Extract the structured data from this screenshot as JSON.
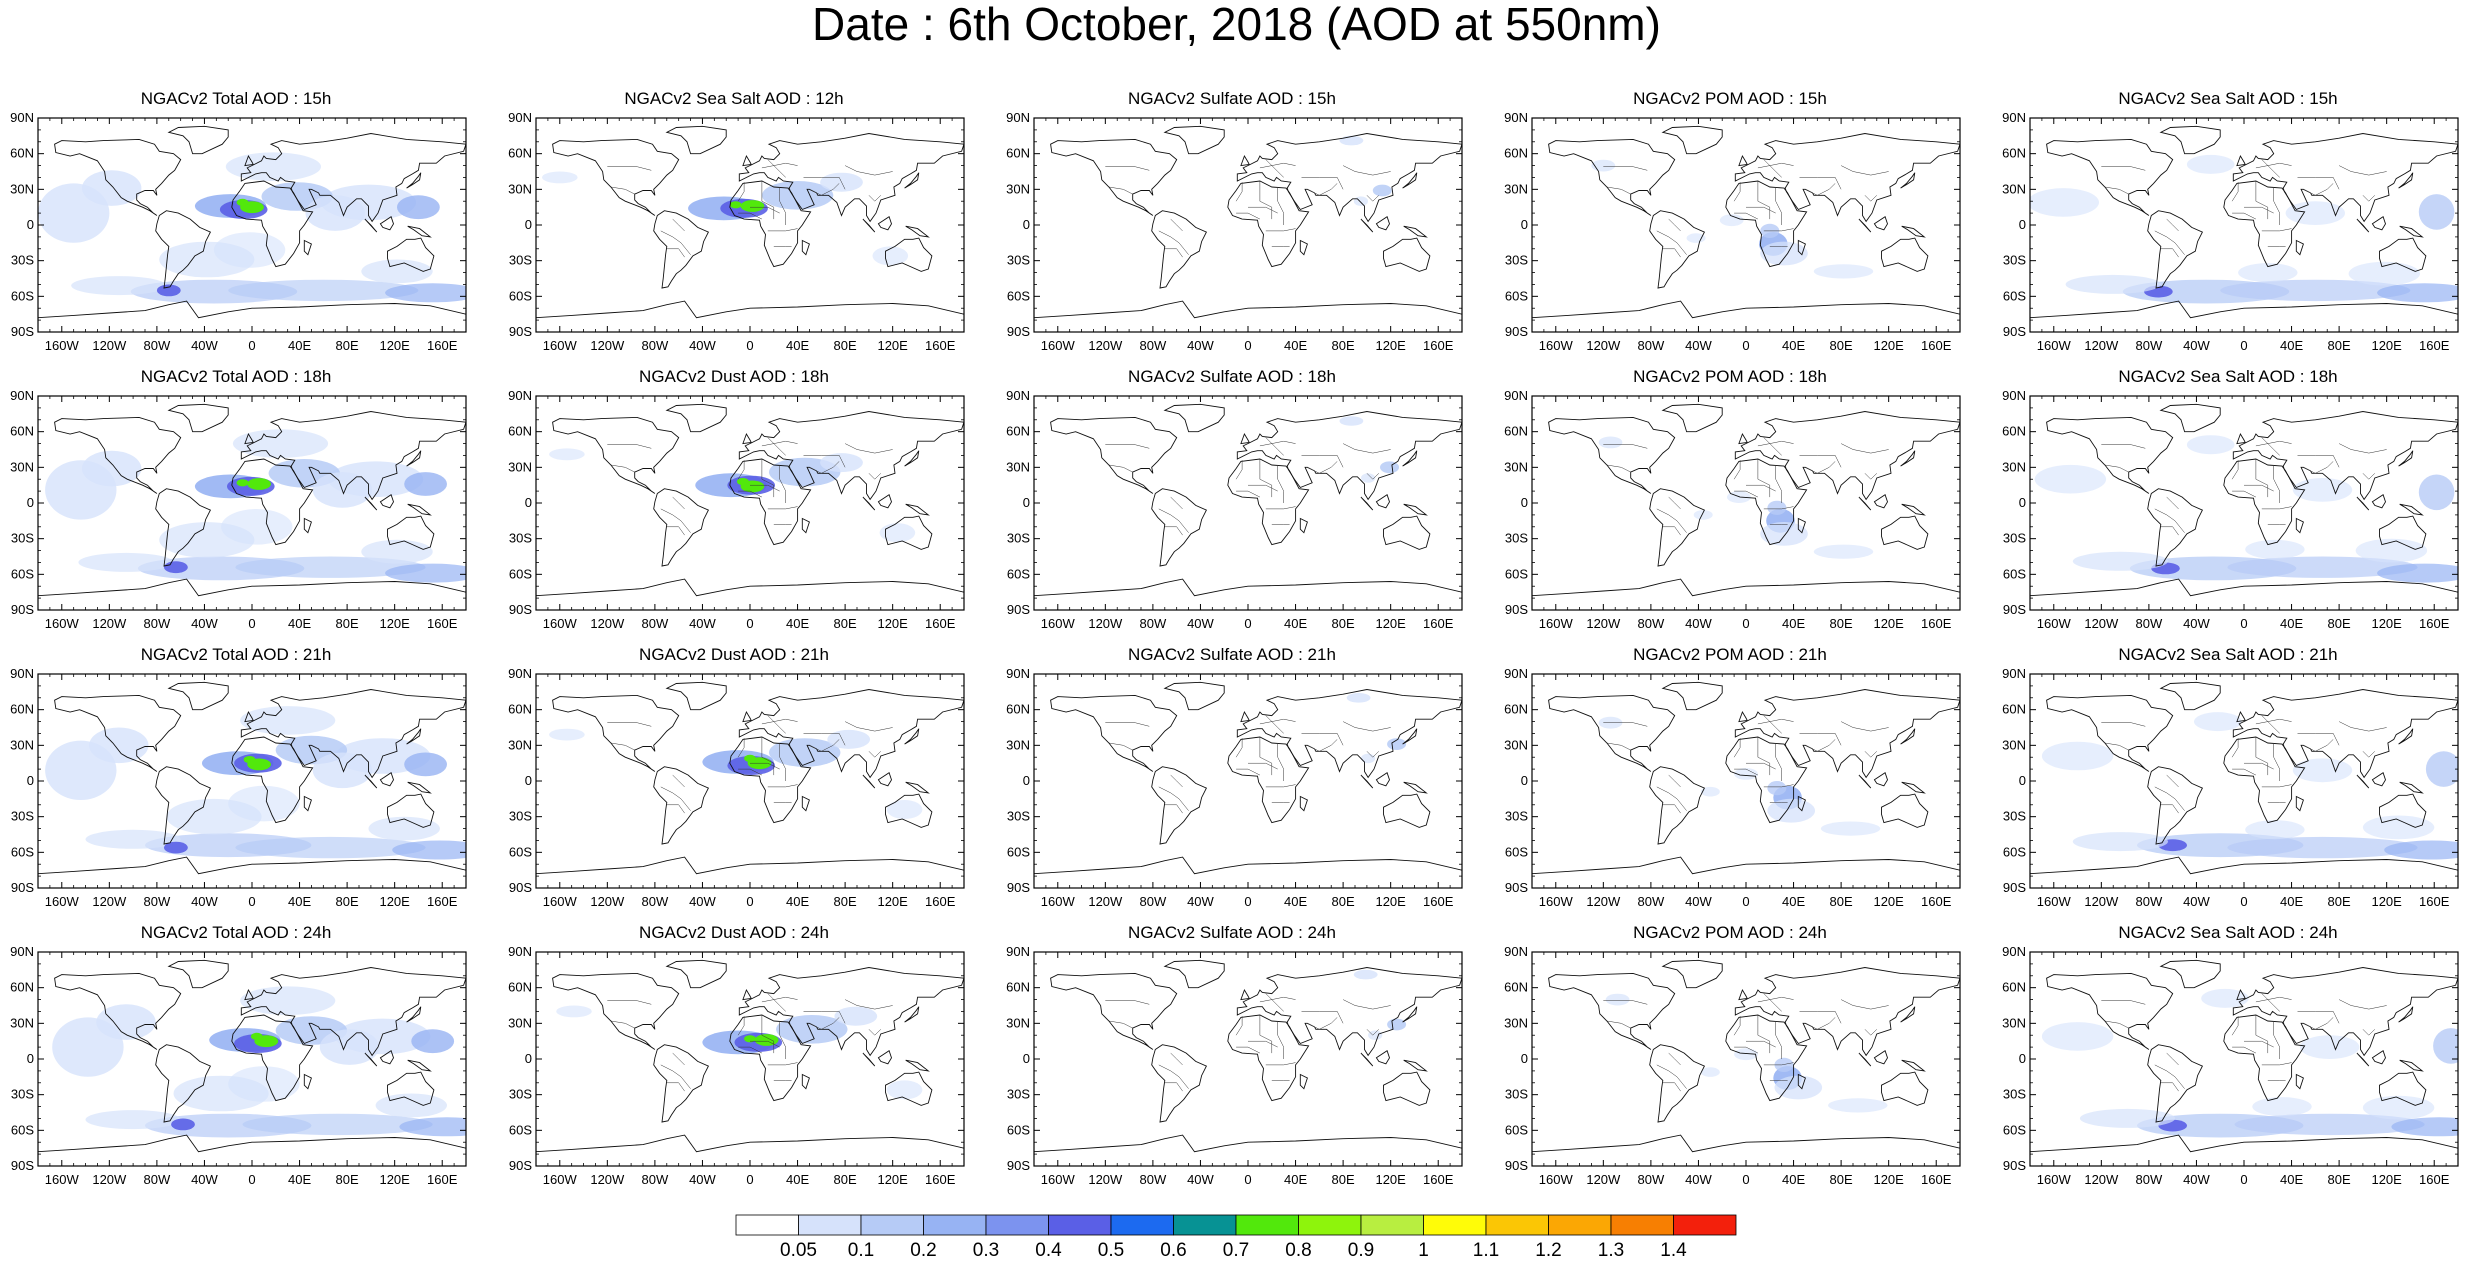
{
  "title": "Date : 6th October, 2018 (AOD at 550nm)",
  "panels": [
    [
      "NGACv2 Total AOD : 15h",
      "NGACv2 Sea Salt  AOD : 12h",
      "NGACv2 Sulfate AOD : 15h",
      "NGACv2 POM AOD : 15h",
      "NGACv2 Sea Salt AOD : 15h"
    ],
    [
      "NGACv2 Total AOD : 18h",
      "NGACv2 Dust AOD : 18h",
      "NGACv2 Sulfate AOD : 18h",
      "NGACv2 POM AOD : 18h",
      "NGACv2 Sea Salt AOD : 18h"
    ],
    [
      "NGACv2 Total AOD : 21h",
      "NGACv2 Dust AOD : 21h",
      "NGACv2 Sulfate AOD : 21h",
      "NGACv2 POM AOD : 21h",
      "NGACv2 Sea Salt AOD : 21h"
    ],
    [
      "NGACv2 Total AOD : 24h",
      "NGACv2 Dust AOD : 24h",
      "NGACv2 Sulfate AOD : 24h",
      "NGACv2 POM AOD : 24h",
      "NGACv2 Sea Salt  AOD : 24h"
    ]
  ],
  "lat_labels": [
    "90N",
    "60N",
    "30N",
    "0",
    "30S",
    "60S",
    "90S"
  ],
  "lon_labels": [
    "160W",
    "120W",
    "80W",
    "40W",
    "0",
    "40E",
    "80E",
    "120E",
    "160E"
  ],
  "lon_values": [
    -160,
    -120,
    -80,
    -40,
    0,
    40,
    80,
    120,
    160
  ],
  "lat_values": [
    90,
    60,
    30,
    0,
    -30,
    -60,
    -90
  ],
  "colorbar": {
    "labels": [
      "0.05",
      "0.1",
      "0.2",
      "0.3",
      "0.4",
      "0.5",
      "0.6",
      "0.7",
      "0.8",
      "0.9",
      "1",
      "1.1",
      "1.2",
      "1.3",
      "1.4"
    ],
    "colors": [
      "#ffffff",
      "#d6e2fb",
      "#b6cbf6",
      "#97b3f3",
      "#7c93ef",
      "#5a5fe6",
      "#1c6af0",
      "#079294",
      "#52e80c",
      "#8ef40c",
      "#b8ee40",
      "#fffc08",
      "#fbc605",
      "#fba704",
      "#f77f02",
      "#f3200c"
    ]
  }
}
